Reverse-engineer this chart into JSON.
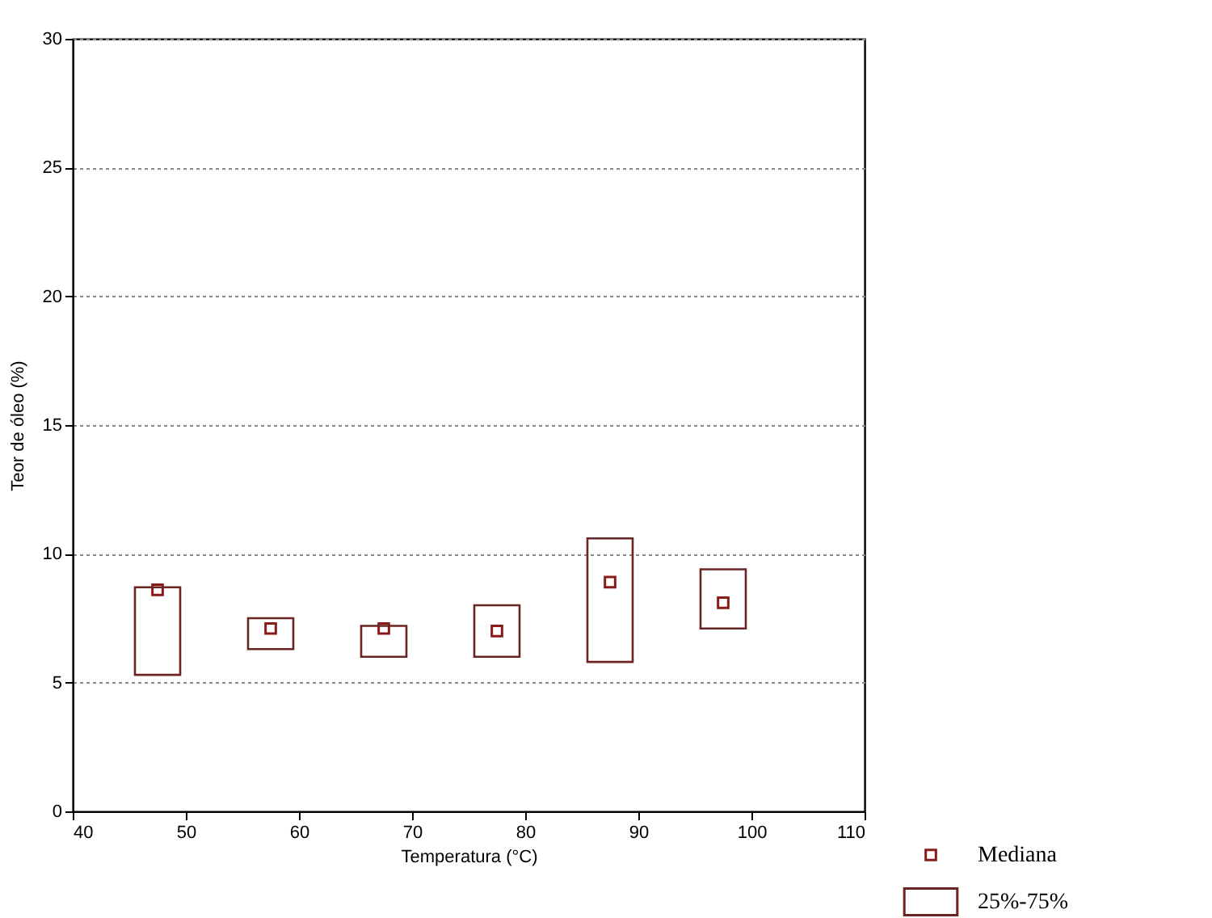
{
  "chart_data": {
    "type": "box",
    "xlabel": "Temperatura (°C)",
    "ylabel": "Teor de óleo (%)",
    "xlim": [
      40,
      110
    ],
    "xticks": [
      40,
      50,
      60,
      70,
      80,
      90,
      100,
      110
    ],
    "ylim": [
      0,
      30
    ],
    "yticks": [
      0,
      5,
      10,
      15,
      20,
      25,
      30
    ],
    "grid": "y",
    "legend": "bottom right",
    "series": [
      {
        "name": "Mediana",
        "type": "scatter",
        "marker": "square",
        "color": "#8b1a1a",
        "x": [
          47.5,
          57.5,
          67.5,
          77.5,
          87.5,
          97.5
        ],
        "values": [
          8.6,
          7.1,
          7.1,
          7.0,
          8.9,
          8.1
        ]
      },
      {
        "name": "25%-75%",
        "type": "box",
        "color": "#6b2424",
        "x": [
          47.5,
          57.5,
          67.5,
          77.5,
          87.5,
          97.5
        ],
        "boxes": [
          {
            "q1": 5.3,
            "q3": 8.7
          },
          {
            "q1": 6.3,
            "q3": 7.5
          },
          {
            "q1": 6.0,
            "q3": 7.2
          },
          {
            "q1": 6.0,
            "q3": 8.0
          },
          {
            "q1": 5.8,
            "q3": 10.6
          },
          {
            "q1": 7.1,
            "q3": 9.4
          }
        ]
      }
    ]
  }
}
